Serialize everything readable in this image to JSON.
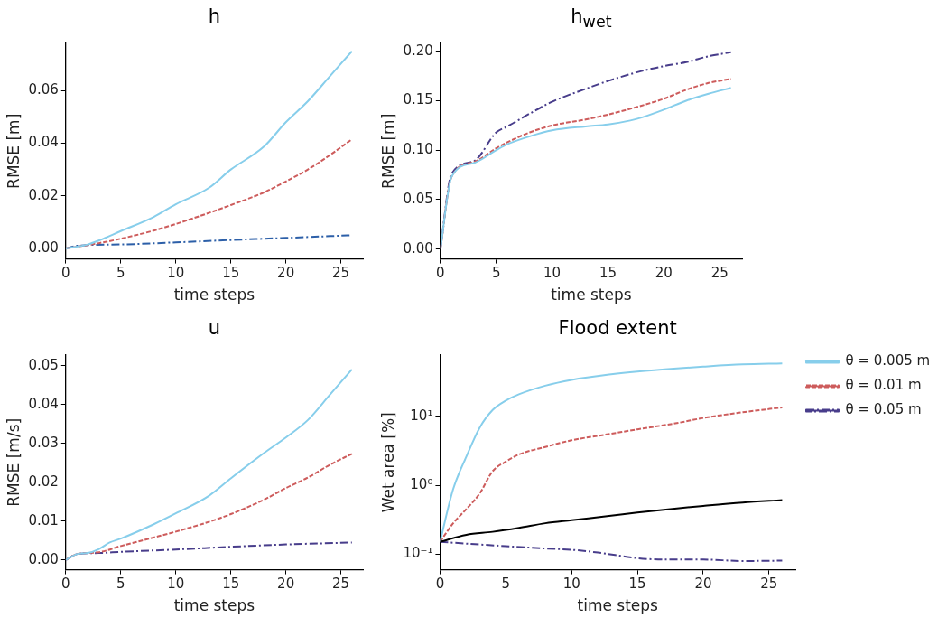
{
  "chart_data": [
    {
      "type": "line",
      "title": "h",
      "xlabel": "time steps",
      "ylabel": "RMSE [m]",
      "xlim": [
        0,
        27
      ],
      "xticks": [
        0,
        5,
        10,
        15,
        20,
        25
      ],
      "ylim": [
        -0.004,
        0.078
      ],
      "yticks": [
        {
          "value": 0,
          "label": "0.00"
        },
        {
          "value": 0.02,
          "label": "0.02"
        },
        {
          "value": 0.04,
          "label": "0.04"
        },
        {
          "value": 0.06,
          "label": "0.06"
        }
      ],
      "grid": false,
      "legend": false,
      "series": [
        {
          "color": "#87ceeb",
          "line_style": "solid",
          "x": [
            0,
            2,
            3,
            5,
            8,
            10,
            13,
            15,
            18,
            20,
            22,
            24,
            26
          ],
          "values": [
            0,
            0.0015,
            0.003,
            0.0066,
            0.012,
            0.0168,
            0.023,
            0.03,
            0.0387,
            0.048,
            0.056,
            0.0655,
            0.075
          ]
        },
        {
          "color": "#cd5c5c",
          "line_style": "dashed",
          "x": [
            0,
            3,
            5,
            8,
            10,
            13,
            15,
            18,
            20,
            22,
            24,
            26
          ],
          "values": [
            0,
            0.002,
            0.0037,
            0.0068,
            0.0093,
            0.0135,
            0.0165,
            0.0213,
            0.0255,
            0.03,
            0.0355,
            0.0415
          ]
        },
        {
          "color": "#2c5fa8",
          "line_style": "dashdot",
          "x": [
            0,
            1,
            5,
            10,
            15,
            20,
            26
          ],
          "values": [
            0,
            0.001,
            0.0015,
            0.0023,
            0.0032,
            0.004,
            0.005
          ]
        }
      ]
    },
    {
      "type": "line",
      "title": "h$_{wet}$",
      "xlabel": "time steps",
      "ylabel": "RMSE [m]",
      "xlim": [
        0,
        27
      ],
      "xticks": [
        0,
        5,
        10,
        15,
        20,
        25
      ],
      "ylim": [
        -0.01,
        0.208
      ],
      "yticks": [
        {
          "value": 0,
          "label": "0.00"
        },
        {
          "value": 0.05,
          "label": "0.05"
        },
        {
          "value": 0.1,
          "label": "0.10"
        },
        {
          "value": 0.15,
          "label": "0.15"
        },
        {
          "value": 0.2,
          "label": "0.20"
        }
      ],
      "grid": false,
      "legend": false,
      "series": [
        {
          "color": "#87ceeb",
          "line_style": "solid",
          "x": [
            0,
            1,
            3,
            5,
            6,
            8,
            10,
            13,
            15,
            17,
            18,
            20,
            22,
            24,
            26
          ],
          "values": [
            0,
            0.073,
            0.087,
            0.1,
            0.106,
            0.114,
            0.12,
            0.124,
            0.126,
            0.13,
            0.133,
            0.141,
            0.15,
            0.157,
            0.163
          ]
        },
        {
          "color": "#cd5c5c",
          "line_style": "dashed",
          "x": [
            0,
            1,
            3,
            5,
            6,
            8,
            10,
            13,
            15,
            18,
            20,
            22,
            24,
            26
          ],
          "values": [
            0,
            0.073,
            0.088,
            0.102,
            0.108,
            0.118,
            0.125,
            0.131,
            0.136,
            0.145,
            0.152,
            0.161,
            0.168,
            0.172
          ]
        },
        {
          "color": "#483d8b",
          "line_style": "dashdot",
          "x": [
            0,
            1,
            3,
            5,
            6,
            8,
            10,
            13,
            15,
            18,
            20,
            22,
            24,
            26
          ],
          "values": [
            0,
            0.076,
            0.089,
            0.118,
            0.124,
            0.137,
            0.149,
            0.162,
            0.17,
            0.18,
            0.185,
            0.189,
            0.195,
            0.199
          ]
        }
      ]
    },
    {
      "type": "line",
      "title": "u",
      "xlabel": "time steps",
      "ylabel": "RMSE [m/s]",
      "xlim": [
        0,
        27
      ],
      "xticks": [
        0,
        5,
        10,
        15,
        20,
        25
      ],
      "ylim": [
        -0.0025,
        0.0527
      ],
      "yticks": [
        {
          "value": 0,
          "label": "0.00"
        },
        {
          "value": 0.01,
          "label": "0.01"
        },
        {
          "value": 0.02,
          "label": "0.02"
        },
        {
          "value": 0.03,
          "label": "0.03"
        },
        {
          "value": 0.04,
          "label": "0.04"
        },
        {
          "value": 0.05,
          "label": "0.05"
        }
      ],
      "grid": false,
      "legend": false,
      "series": [
        {
          "color": "#87ceeb",
          "line_style": "solid",
          "x": [
            0,
            1,
            2,
            3,
            4,
            5,
            8,
            10,
            13,
            15,
            18,
            20,
            22,
            24,
            26
          ],
          "values": [
            0,
            0.0015,
            0.0018,
            0.0028,
            0.0045,
            0.0055,
            0.0092,
            0.012,
            0.0165,
            0.021,
            0.0275,
            0.0315,
            0.036,
            0.0425,
            0.049
          ]
        },
        {
          "color": "#cd5c5c",
          "line_style": "dashed",
          "x": [
            0,
            1,
            3,
            5,
            8,
            10,
            13,
            15,
            18,
            20,
            22,
            24,
            26
          ],
          "values": [
            0,
            0.0015,
            0.002,
            0.0036,
            0.0058,
            0.0073,
            0.0098,
            0.0118,
            0.0155,
            0.0185,
            0.0212,
            0.0245,
            0.0273
          ]
        },
        {
          "color": "#483d8b",
          "line_style": "dashdot",
          "x": [
            0,
            1,
            3,
            5,
            10,
            15,
            20,
            26
          ],
          "values": [
            0,
            0.0015,
            0.0018,
            0.0021,
            0.0027,
            0.0034,
            0.004,
            0.0045
          ]
        }
      ]
    },
    {
      "type": "line",
      "title": "Flood extent",
      "xlabel": "time steps",
      "ylabel": "Wet area [%]",
      "log": "y",
      "xlim": [
        0,
        27
      ],
      "xticks": [
        0,
        5,
        10,
        15,
        20,
        25
      ],
      "ylim": [
        0.059,
        78
      ],
      "yticks": [
        {
          "value": 0.1,
          "label": "10⁻¹"
        },
        {
          "value": 1,
          "label": "10⁰"
        },
        {
          "value": 10,
          "label": "10¹"
        }
      ],
      "grid": false,
      "legend": "right",
      "series": [
        {
          "color": "#000000",
          "line_style": "solid",
          "x": [
            0,
            2,
            4,
            6,
            8,
            10,
            13,
            15,
            18,
            20,
            23,
            26
          ],
          "values": [
            0.15,
            0.19,
            0.21,
            0.24,
            0.28,
            0.31,
            0.36,
            0.4,
            0.46,
            0.5,
            0.56,
            0.61
          ]
        },
        {
          "name": "θ = 0.005 m",
          "color": "#87ceeb",
          "line_style": "solid",
          "x": [
            0,
            1,
            2,
            3,
            4,
            5,
            6,
            8,
            10,
            13,
            15,
            18,
            20,
            23,
            26
          ],
          "values": [
            0.15,
            0.88,
            2.6,
            6.8,
            12.4,
            17,
            21,
            28,
            34,
            41,
            45,
            50,
            53,
            57,
            59
          ]
        },
        {
          "name": "θ = 0.01 m",
          "color": "#cd5c5c",
          "line_style": "dashed",
          "x": [
            0,
            1,
            2,
            3,
            4,
            5,
            6,
            8,
            10,
            13,
            15,
            18,
            20,
            23,
            26
          ],
          "values": [
            0.15,
            0.28,
            0.45,
            0.75,
            1.6,
            2.2,
            2.8,
            3.6,
            4.5,
            5.6,
            6.5,
            8,
            9.5,
            11.5,
            13.5
          ]
        },
        {
          "name": "θ = 0.05 m",
          "color": "#483d8b",
          "line_style": "dashdot",
          "x": [
            0,
            5,
            8,
            10,
            12,
            15,
            17,
            20,
            23,
            26
          ],
          "values": [
            0.15,
            0.13,
            0.12,
            0.115,
            0.105,
            0.087,
            0.083,
            0.083,
            0.079,
            0.08
          ]
        }
      ]
    }
  ]
}
